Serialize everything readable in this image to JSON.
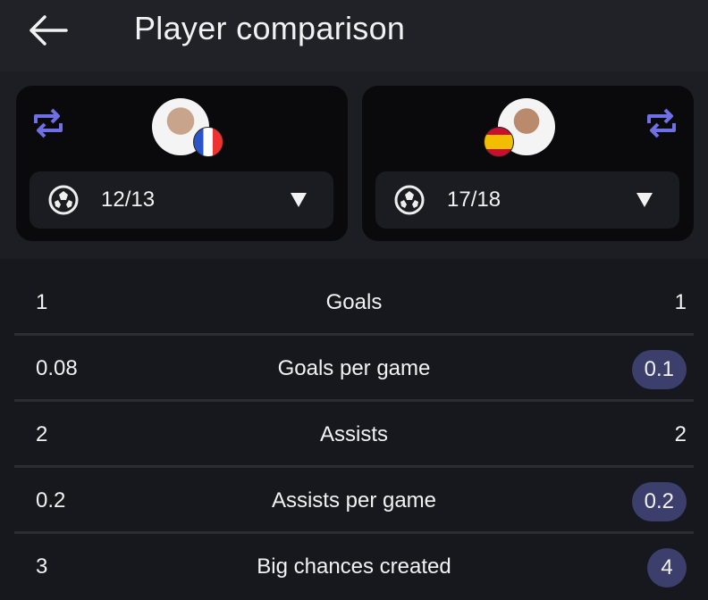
{
  "header": {
    "title": "Player comparison",
    "back_icon": "arrow-left-icon"
  },
  "colors": {
    "accent": "#6f6fe6",
    "highlight_pill": "#3c3e6c"
  },
  "players": [
    {
      "side": "left",
      "season": "12/13",
      "flag": "France",
      "competition_icon": "champions-league-ball-icon"
    },
    {
      "side": "right",
      "season": "17/18",
      "flag": "Spain",
      "competition_icon": "champions-league-ball-icon"
    }
  ],
  "stats": [
    {
      "label": "Goals",
      "left": "1",
      "right": "1",
      "right_highlight": false
    },
    {
      "label": "Goals per game",
      "left": "0.08",
      "right": "0.1",
      "right_highlight": true
    },
    {
      "label": "Assists",
      "left": "2",
      "right": "2",
      "right_highlight": false
    },
    {
      "label": "Assists per game",
      "left": "0.2",
      "right": "0.2",
      "right_highlight": true
    },
    {
      "label": "Big chances created",
      "left": "3",
      "right": "4",
      "right_highlight": true
    }
  ]
}
